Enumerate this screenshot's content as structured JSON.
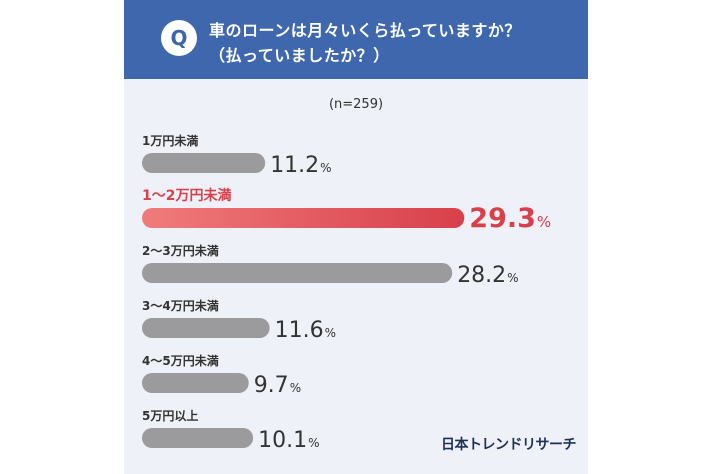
{
  "question": {
    "badge": "Q",
    "line1": "車のローンは月々いくら払っていますか？",
    "line2": "（払っていましたか？）"
  },
  "sample_note": "(n=259)",
  "brand": "日本トレンドリサーチ",
  "colors": {
    "header": "#3f67ad",
    "background": "#eef1f7",
    "bar_default": "#9b9b9e",
    "bar_highlight_start": "#f07b7b",
    "bar_highlight_end": "#d8404a",
    "label_default": "#333333",
    "label_highlight": "#d8404a"
  },
  "chart_data": {
    "type": "bar",
    "orientation": "horizontal",
    "categories": [
      "1万円未満",
      "1～2万円未満",
      "2～3万円未満",
      "3～4万円未満",
      "4～5万円未満",
      "5万円以上"
    ],
    "values": [
      11.2,
      29.3,
      28.2,
      11.6,
      9.7,
      10.1
    ],
    "value_labels": [
      "11.2",
      "29.3",
      "28.2",
      "11.6",
      "9.7",
      "10.1"
    ],
    "unit": "%",
    "highlight_index": 1,
    "xlim": [
      0,
      30
    ]
  }
}
